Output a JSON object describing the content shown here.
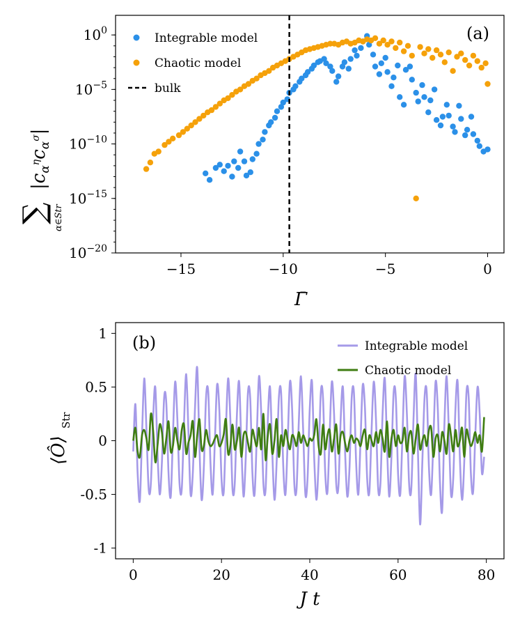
{
  "chart_data": [
    {
      "panel": "(a)",
      "type": "scatter",
      "xlabel": "Γ̄",
      "ylabel_main": "|c",
      "ylabel_sub": "α∈Str",
      "xlim": [
        -18.2,
        0.8
      ],
      "ylim_log10": [
        -20,
        1.8
      ],
      "xticks": [
        -15,
        -10,
        -5,
        0
      ],
      "xtick_labels": [
        "−15",
        "−10",
        "−5",
        "0"
      ],
      "yticks_exp": [
        0,
        -5,
        -10,
        -15,
        -20
      ],
      "ytick_base": "10",
      "ytick_exp_labels": [
        "0",
        "−5",
        "−10",
        "−15",
        "−20"
      ],
      "vline": {
        "x": -9.7,
        "label": "bulk"
      },
      "legend_position": "top-left",
      "series": [
        {
          "name": "Integrable model",
          "color": "#2b90e8",
          "points": [
            [
              -13.8,
              -12.7
            ],
            [
              -13.6,
              -13.3
            ],
            [
              -13.3,
              -12.2
            ],
            [
              -13.1,
              -11.9
            ],
            [
              -12.9,
              -12.5
            ],
            [
              -12.7,
              -12.0
            ],
            [
              -12.5,
              -13.0
            ],
            [
              -12.4,
              -11.6
            ],
            [
              -12.2,
              -12.2
            ],
            [
              -12.1,
              -10.7
            ],
            [
              -11.9,
              -11.6
            ],
            [
              -11.8,
              -12.9
            ],
            [
              -11.6,
              -12.6
            ],
            [
              -11.5,
              -11.4
            ],
            [
              -11.3,
              -10.9
            ],
            [
              -11.2,
              -10.0
            ],
            [
              -11.0,
              -9.6
            ],
            [
              -10.9,
              -8.9
            ],
            [
              -10.7,
              -8.3
            ],
            [
              -10.6,
              -8.0
            ],
            [
              -10.4,
              -7.6
            ],
            [
              -10.3,
              -7.0
            ],
            [
              -10.1,
              -6.6
            ],
            [
              -10.0,
              -6.2
            ],
            [
              -9.8,
              -5.9
            ],
            [
              -9.7,
              -5.3
            ],
            [
              -9.5,
              -5.0
            ],
            [
              -9.4,
              -4.7
            ],
            [
              -9.2,
              -4.3
            ],
            [
              -9.1,
              -4.0
            ],
            [
              -8.9,
              -3.7
            ],
            [
              -8.8,
              -3.4
            ],
            [
              -8.6,
              -3.1
            ],
            [
              -8.5,
              -2.8
            ],
            [
              -8.3,
              -2.5
            ],
            [
              -8.2,
              -2.4
            ],
            [
              -8.0,
              -2.2
            ],
            [
              -7.9,
              -2.6
            ],
            [
              -7.7,
              -2.9
            ],
            [
              -7.6,
              -3.3
            ],
            [
              -7.4,
              -4.3
            ],
            [
              -7.3,
              -3.8
            ],
            [
              -7.1,
              -2.9
            ],
            [
              -7.0,
              -2.5
            ],
            [
              -6.8,
              -3.1
            ],
            [
              -6.7,
              -2.2
            ],
            [
              -6.5,
              -1.4
            ],
            [
              -6.4,
              -1.9
            ],
            [
              -6.2,
              -1.2
            ],
            [
              -6.1,
              -0.6
            ],
            [
              -5.9,
              -0.1
            ],
            [
              -5.8,
              -0.9
            ],
            [
              -5.6,
              -1.8
            ],
            [
              -5.5,
              -2.9
            ],
            [
              -5.3,
              -3.6
            ],
            [
              -5.2,
              -2.6
            ],
            [
              -5.0,
              -2.1
            ],
            [
              -4.9,
              -3.4
            ],
            [
              -4.7,
              -4.7
            ],
            [
              -4.6,
              -3.9
            ],
            [
              -4.4,
              -2.8
            ],
            [
              -4.3,
              -5.7
            ],
            [
              -4.1,
              -6.4
            ],
            [
              -4.0,
              -3.2
            ],
            [
              -3.8,
              -2.9
            ],
            [
              -3.7,
              -4.1
            ],
            [
              -3.5,
              -5.3
            ],
            [
              -3.4,
              -6.1
            ],
            [
              -3.2,
              -4.6
            ],
            [
              -3.1,
              -5.7
            ],
            [
              -2.9,
              -7.1
            ],
            [
              -2.8,
              -6.0
            ],
            [
              -2.6,
              -5.0
            ],
            [
              -2.5,
              -7.8
            ],
            [
              -2.3,
              -8.3
            ],
            [
              -2.2,
              -7.5
            ],
            [
              -2.0,
              -6.4
            ],
            [
              -1.9,
              -7.4
            ],
            [
              -1.7,
              -8.4
            ],
            [
              -1.6,
              -8.9
            ],
            [
              -1.4,
              -6.5
            ],
            [
              -1.3,
              -7.7
            ],
            [
              -1.1,
              -9.2
            ],
            [
              -1.0,
              -8.7
            ],
            [
              -0.8,
              -7.5
            ],
            [
              -0.7,
              -9.1
            ],
            [
              -0.5,
              -9.7
            ],
            [
              -0.4,
              -10.2
            ],
            [
              -0.2,
              -10.7
            ],
            [
              0.0,
              -10.5
            ]
          ]
        },
        {
          "name": "Chaotic model",
          "color": "#f5a10a",
          "points": [
            [
              -16.7,
              -12.3
            ],
            [
              -16.5,
              -11.7
            ],
            [
              -16.3,
              -10.9
            ],
            [
              -16.1,
              -10.7
            ],
            [
              -15.8,
              -10.1
            ],
            [
              -15.6,
              -9.8
            ],
            [
              -15.4,
              -9.5
            ],
            [
              -15.1,
              -9.2
            ],
            [
              -14.9,
              -8.9
            ],
            [
              -14.7,
              -8.6
            ],
            [
              -14.5,
              -8.3
            ],
            [
              -14.3,
              -8.0
            ],
            [
              -14.1,
              -7.7
            ],
            [
              -13.9,
              -7.4
            ],
            [
              -13.7,
              -7.1
            ],
            [
              -13.5,
              -6.9
            ],
            [
              -13.3,
              -6.6
            ],
            [
              -13.1,
              -6.3
            ],
            [
              -12.9,
              -6.0
            ],
            [
              -12.7,
              -5.8
            ],
            [
              -12.5,
              -5.5
            ],
            [
              -12.3,
              -5.2
            ],
            [
              -12.1,
              -5.0
            ],
            [
              -11.9,
              -4.7
            ],
            [
              -11.7,
              -4.5
            ],
            [
              -11.5,
              -4.2
            ],
            [
              -11.3,
              -4.0
            ],
            [
              -11.1,
              -3.7
            ],
            [
              -10.9,
              -3.5
            ],
            [
              -10.7,
              -3.3
            ],
            [
              -10.5,
              -3.0
            ],
            [
              -10.3,
              -2.8
            ],
            [
              -10.1,
              -2.6
            ],
            [
              -9.9,
              -2.4
            ],
            [
              -9.7,
              -2.2
            ],
            [
              -9.5,
              -2.0
            ],
            [
              -9.3,
              -1.8
            ],
            [
              -9.1,
              -1.6
            ],
            [
              -8.9,
              -1.4
            ],
            [
              -8.7,
              -1.3
            ],
            [
              -8.5,
              -1.2
            ],
            [
              -8.3,
              -1.1
            ],
            [
              -8.1,
              -1.0
            ],
            [
              -7.9,
              -0.9
            ],
            [
              -7.7,
              -0.8
            ],
            [
              -7.5,
              -0.8
            ],
            [
              -7.3,
              -0.9
            ],
            [
              -7.1,
              -0.7
            ],
            [
              -6.9,
              -0.6
            ],
            [
              -6.7,
              -0.8
            ],
            [
              -6.5,
              -0.7
            ],
            [
              -6.3,
              -0.5
            ],
            [
              -6.1,
              -0.6
            ],
            [
              -5.9,
              -0.4
            ],
            [
              -5.7,
              -0.5
            ],
            [
              -5.5,
              -0.3
            ],
            [
              -5.3,
              -0.8
            ],
            [
              -5.1,
              -0.5
            ],
            [
              -4.9,
              -0.9
            ],
            [
              -4.7,
              -0.6
            ],
            [
              -4.5,
              -1.2
            ],
            [
              -4.3,
              -0.7
            ],
            [
              -4.1,
              -1.5
            ],
            [
              -3.9,
              -1.0
            ],
            [
              -3.7,
              -1.9
            ],
            [
              -3.5,
              -15.0
            ],
            [
              -3.3,
              -1.1
            ],
            [
              -3.1,
              -1.7
            ],
            [
              -2.9,
              -1.3
            ],
            [
              -2.7,
              -2.1
            ],
            [
              -2.5,
              -1.4
            ],
            [
              -2.3,
              -1.8
            ],
            [
              -2.1,
              -2.5
            ],
            [
              -1.9,
              -1.6
            ],
            [
              -1.7,
              -3.3
            ],
            [
              -1.5,
              -2.0
            ],
            [
              -1.3,
              -1.7
            ],
            [
              -1.1,
              -2.3
            ],
            [
              -0.9,
              -2.8
            ],
            [
              -0.7,
              -1.9
            ],
            [
              -0.5,
              -2.4
            ],
            [
              -0.3,
              -3.0
            ],
            [
              -0.1,
              -2.6
            ],
            [
              0.0,
              -4.5
            ]
          ]
        }
      ]
    },
    {
      "panel": "(b)",
      "type": "line",
      "xlabel": "J t",
      "ylabel": "⟨Ô⟩",
      "ylabel_sub": "Str",
      "xlim": [
        -4,
        84
      ],
      "ylim": [
        -1.1,
        1.1
      ],
      "xticks": [
        0,
        20,
        40,
        60,
        80
      ],
      "xtick_labels": [
        "0",
        "20",
        "40",
        "60",
        "80"
      ],
      "yticks": [
        1,
        0.5,
        0,
        -0.5,
        -1
      ],
      "ytick_labels": [
        "1",
        "0.5",
        "0",
        "-0.5",
        "-1"
      ],
      "legend_position": "top-right",
      "series": [
        {
          "name": "Integrable model",
          "color": "#a59ae8",
          "x_start": 0,
          "x_step": 0.5,
          "values": [
            -0.1,
            0.34,
            -0.3,
            -0.56,
            0.05,
            0.58,
            0.1,
            -0.45,
            -0.4,
            0.2,
            0.5,
            -0.1,
            -0.5,
            -0.2,
            0.4,
            0.35,
            -0.3,
            -0.52,
            0.05,
            0.55,
            0.2,
            -0.4,
            -0.45,
            0.15,
            0.62,
            0.1,
            -0.5,
            -0.3,
            0.3,
            0.68,
            -0.05,
            -0.55,
            -0.25,
            0.4,
            0.45,
            -0.2,
            -0.5,
            0.0,
            0.52,
            0.3,
            -0.35,
            -0.48,
            0.1,
            0.58,
            0.2,
            -0.45,
            -0.4,
            0.25,
            0.55,
            -0.05,
            -0.52,
            -0.15,
            0.45,
            0.4,
            -0.3,
            -0.5,
            0.05,
            0.6,
            0.25,
            -0.4,
            -0.45,
            0.2,
            0.5,
            -0.1,
            -0.55,
            -0.2,
            0.4,
            0.45,
            -0.25,
            -0.5,
            0.0,
            0.55,
            0.3,
            -0.4,
            -0.45,
            0.15,
            0.6,
            0.1,
            -0.5,
            -0.35,
            0.3,
            0.55,
            -0.15,
            -0.55,
            -0.2,
            0.45,
            0.4,
            -0.3,
            -0.48,
            0.05,
            0.55,
            0.25,
            -0.4,
            -0.42,
            0.2,
            0.5,
            -0.1,
            -0.52,
            -0.25,
            0.4,
            0.45,
            -0.2,
            -0.5,
            0.0,
            0.52,
            0.3,
            -0.35,
            -0.48,
            0.1,
            0.55,
            0.2,
            -0.45,
            -0.4,
            0.25,
            0.58,
            -0.05,
            -0.52,
            -0.15,
            0.45,
            0.4,
            -0.3,
            -0.5,
            0.05,
            0.6,
            0.25,
            -0.4,
            -0.45,
            0.2,
            0.62,
            -0.1,
            -0.78,
            -0.2,
            0.4,
            0.45,
            -0.25,
            -0.5,
            0.0,
            0.55,
            0.3,
            -0.4,
            -0.65,
            0.15,
            0.6,
            0.1,
            -0.5,
            -0.35,
            0.3,
            0.55,
            -0.15,
            -0.55,
            -0.2,
            0.45,
            0.4,
            -0.3,
            -0.48,
            0.05,
            0.5,
            0.25,
            -0.3,
            -0.15
          ]
        },
        {
          "name": "Chaotic model",
          "color": "#3f7d12",
          "x_start": 0,
          "x_step": 0.5,
          "values": [
            0.0,
            0.12,
            -0.1,
            -0.15,
            0.05,
            0.1,
            0.02,
            -0.08,
            0.25,
            0.1,
            -0.2,
            -0.05,
            0.15,
            0.08,
            -0.12,
            0.02,
            0.18,
            -0.1,
            -0.05,
            0.12,
            0.0,
            -0.08,
            0.1,
            0.15,
            -0.12,
            -0.02,
            0.05,
            0.18,
            -0.15,
            0.05,
            0.2,
            -0.08,
            -0.05,
            0.1,
            0.0,
            -0.05,
            -0.03,
            0.02,
            0.05,
            -0.05,
            -0.02,
            0.06,
            0.2,
            -0.12,
            -0.05,
            0.15,
            -0.08,
            0.0,
            0.12,
            -0.15,
            0.05,
            0.08,
            -0.02,
            -0.1,
            0.1,
            0.02,
            -0.05,
            0.12,
            -0.08,
            0.25,
            -0.18,
            0.05,
            0.15,
            -0.12,
            0.0,
            0.2,
            -0.15,
            0.05,
            -0.05,
            0.1,
            0.0,
            -0.08,
            0.05,
            0.02,
            -0.05,
            0.08,
            -0.02,
            0.05,
            0.0,
            -0.05,
            0.02,
            0.0,
            0.05,
            0.2,
            -0.05,
            -0.12,
            0.15,
            -0.08,
            0.05,
            0.1,
            -0.1,
            0.02,
            0.15,
            -0.12,
            0.05,
            0.08,
            -0.02,
            -0.1,
            0.0,
            0.05,
            -0.02,
            0.02,
            0.0,
            -0.05,
            0.05,
            0.1,
            -0.08,
            0.05,
            0.0,
            -0.05,
            0.08,
            -0.02,
            0.1,
            0.02,
            -0.1,
            0.18,
            -0.15,
            0.02,
            0.1,
            -0.05,
            0.05,
            -0.02,
            0.0,
            0.12,
            -0.1,
            0.05,
            0.08,
            -0.12,
            0.02,
            0.15,
            -0.08,
            0.0,
            0.05,
            -0.05,
            0.1,
            0.12,
            -0.15,
            0.02,
            0.05,
            -0.1,
            0.08,
            0.0,
            -0.12,
            0.15,
            0.05,
            -0.1,
            0.1,
            -0.05,
            0.0,
            0.12,
            -0.15,
            0.1,
            0.02,
            -0.05,
            0.0,
            0.08,
            -0.02,
            0.05,
            -0.1,
            0.22
          ]
        }
      ]
    }
  ]
}
